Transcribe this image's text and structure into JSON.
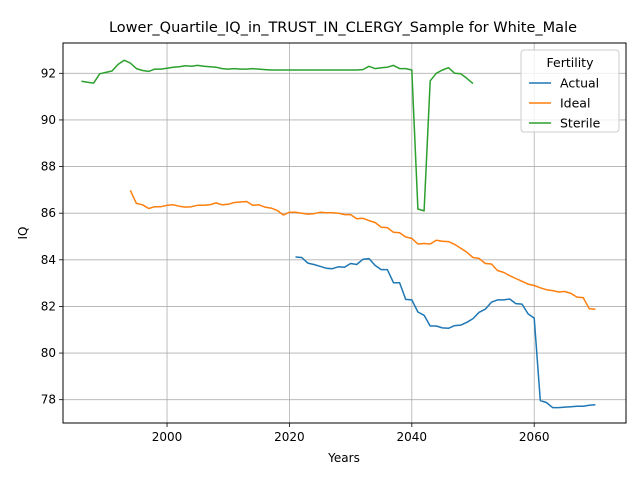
{
  "chart_data": {
    "type": "line",
    "title": "Lower_Quartile_IQ_in_TRUST_IN_CLERGY_Sample for White_Male",
    "xlabel": "Years",
    "ylabel": "IQ",
    "xlim": [
      1983,
      2075
    ],
    "ylim": [
      77.0,
      93.3
    ],
    "xticks": [
      2000,
      2020,
      2040,
      2060
    ],
    "yticks": [
      78,
      80,
      82,
      84,
      86,
      88,
      90,
      92
    ],
    "grid": true,
    "legend": {
      "title": "Fertility",
      "placement": "top-right"
    },
    "series": [
      {
        "name": "Actual",
        "color": "#1f77b4",
        "x": [
          2021,
          2022,
          2023,
          2024,
          2025,
          2026,
          2027,
          2028,
          2029,
          2030,
          2031,
          2032,
          2033,
          2034,
          2035,
          2036,
          2037,
          2038,
          2039,
          2040,
          2041,
          2042,
          2043,
          2044,
          2045,
          2046,
          2047,
          2048,
          2049,
          2050,
          2051,
          2052,
          2053,
          2054,
          2055,
          2056,
          2057,
          2058,
          2059,
          2060,
          2061,
          2062,
          2063,
          2064,
          2065,
          2066,
          2067,
          2068,
          2069,
          2070
        ],
        "y": [
          84.12,
          84.1,
          83.86,
          83.8,
          83.72,
          83.64,
          83.62,
          83.7,
          83.68,
          83.84,
          83.8,
          84.02,
          84.05,
          83.76,
          83.58,
          83.58,
          83.02,
          83.02,
          82.3,
          82.28,
          81.76,
          81.62,
          81.16,
          81.16,
          81.08,
          81.06,
          81.18,
          81.2,
          81.32,
          81.48,
          81.75,
          81.88,
          82.18,
          82.28,
          82.28,
          82.32,
          82.12,
          82.1,
          81.68,
          81.5,
          77.96,
          77.88,
          77.66,
          77.66,
          77.68,
          77.7,
          77.72,
          77.72,
          77.76,
          77.78
        ]
      },
      {
        "name": "Ideal",
        "color": "#ff7f0e",
        "x": [
          1994,
          1995,
          1996,
          1997,
          1998,
          1999,
          2000,
          2001,
          2002,
          2003,
          2004,
          2005,
          2006,
          2007,
          2008,
          2009,
          2010,
          2011,
          2012,
          2013,
          2014,
          2015,
          2016,
          2017,
          2018,
          2019,
          2020,
          2021,
          2022,
          2023,
          2024,
          2025,
          2026,
          2027,
          2028,
          2029,
          2030,
          2031,
          2032,
          2033,
          2034,
          2035,
          2036,
          2037,
          2038,
          2039,
          2040,
          2041,
          2042,
          2043,
          2044,
          2045,
          2046,
          2047,
          2048,
          2049,
          2050,
          2051,
          2052,
          2053,
          2054,
          2055,
          2056,
          2057,
          2058,
          2059,
          2060,
          2061,
          2062,
          2063,
          2064,
          2065,
          2066,
          2067,
          2068,
          2069,
          2070
        ],
        "y": [
          86.98,
          86.42,
          86.36,
          86.2,
          86.28,
          86.28,
          86.34,
          86.36,
          86.3,
          86.26,
          86.28,
          86.34,
          86.34,
          86.36,
          86.44,
          86.36,
          86.38,
          86.46,
          86.48,
          86.5,
          86.34,
          86.36,
          86.26,
          86.22,
          86.12,
          85.92,
          86.04,
          86.04,
          86.0,
          85.96,
          85.98,
          86.04,
          86.02,
          86.02,
          86.0,
          85.94,
          85.94,
          85.76,
          85.78,
          85.68,
          85.6,
          85.4,
          85.38,
          85.18,
          85.16,
          84.98,
          84.92,
          84.68,
          84.7,
          84.68,
          84.84,
          84.8,
          84.78,
          84.66,
          84.5,
          84.32,
          84.1,
          84.06,
          83.84,
          83.82,
          83.54,
          83.46,
          83.32,
          83.2,
          83.08,
          82.96,
          82.9,
          82.8,
          82.72,
          82.68,
          82.62,
          82.64,
          82.56,
          82.4,
          82.38,
          81.9,
          81.88
        ]
      },
      {
        "name": "Sterile",
        "color": "#2ca02c",
        "x": [
          1986,
          1987,
          1988,
          1989,
          1990,
          1991,
          1992,
          1993,
          1994,
          1995,
          1996,
          1997,
          1998,
          1999,
          2000,
          2001,
          2002,
          2003,
          2004,
          2005,
          2006,
          2007,
          2008,
          2009,
          2010,
          2011,
          2012,
          2013,
          2014,
          2015,
          2016,
          2017,
          2018,
          2019,
          2020,
          2021,
          2022,
          2023,
          2024,
          2025,
          2026,
          2027,
          2028,
          2029,
          2030,
          2031,
          2032,
          2033,
          2034,
          2035,
          2036,
          2037,
          2038,
          2039,
          2040,
          2041,
          2042,
          2043,
          2044,
          2045,
          2046,
          2047,
          2048,
          2049,
          2050
        ],
        "y": [
          91.66,
          91.62,
          91.58,
          91.98,
          92.04,
          92.1,
          92.38,
          92.56,
          92.44,
          92.2,
          92.12,
          92.08,
          92.18,
          92.18,
          92.22,
          92.26,
          92.28,
          92.32,
          92.3,
          92.34,
          92.3,
          92.28,
          92.26,
          92.2,
          92.18,
          92.2,
          92.18,
          92.18,
          92.2,
          92.18,
          92.16,
          92.14,
          92.14,
          92.14,
          92.14,
          92.14,
          92.14,
          92.14,
          92.14,
          92.14,
          92.14,
          92.14,
          92.14,
          92.14,
          92.14,
          92.14,
          92.16,
          92.3,
          92.2,
          92.24,
          92.26,
          92.34,
          92.2,
          92.2,
          92.14,
          86.18,
          86.1,
          91.68,
          92.0,
          92.14,
          92.24,
          92.0,
          91.98,
          91.78,
          91.56
        ]
      }
    ]
  }
}
